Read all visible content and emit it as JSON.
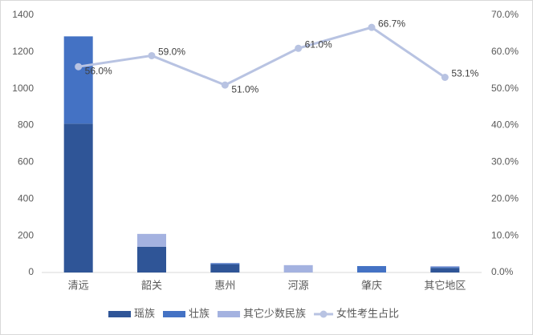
{
  "chart_data": {
    "type": "bar",
    "stacked": true,
    "categories": [
      "清远",
      "韶关",
      "惠州",
      "河源",
      "肇庆",
      "其它地区"
    ],
    "series": [
      {
        "name": "瑶族",
        "type": "bar",
        "color": "#2f5597",
        "values": [
          810,
          140,
          45,
          0,
          0,
          25
        ]
      },
      {
        "name": "壮族",
        "type": "bar",
        "color": "#4472c4",
        "values": [
          475,
          0,
          5,
          0,
          35,
          5
        ]
      },
      {
        "name": "其它少数民族",
        "type": "bar",
        "color": "#a4b2e0",
        "values": [
          0,
          70,
          2,
          40,
          0,
          5
        ]
      },
      {
        "name": "女性考生占比",
        "type": "line",
        "axis": "y2",
        "color": "#b8c3e2",
        "values": [
          56.0,
          59.0,
          51.0,
          61.0,
          66.7,
          53.1
        ],
        "value_labels": [
          "56.0%",
          "59.0%",
          "51.0%",
          "61.0%",
          "66.7%",
          "53.1%"
        ]
      }
    ],
    "ylim": [
      0,
      1400
    ],
    "yticks": [
      0,
      200,
      400,
      600,
      800,
      1000,
      1200,
      1400
    ],
    "y2lim": [
      0,
      70
    ],
    "y2ticks": [
      {
        "value": 0,
        "label": "0.0%"
      },
      {
        "value": 10,
        "label": "10.0%"
      },
      {
        "value": 20,
        "label": "20.0%"
      },
      {
        "value": 30,
        "label": "30.0%"
      },
      {
        "value": 40,
        "label": "40.0%"
      },
      {
        "value": 50,
        "label": "50.0%"
      },
      {
        "value": 60,
        "label": "60.0%"
      },
      {
        "value": 70,
        "label": "70.0%"
      }
    ],
    "legend": "bottom"
  }
}
